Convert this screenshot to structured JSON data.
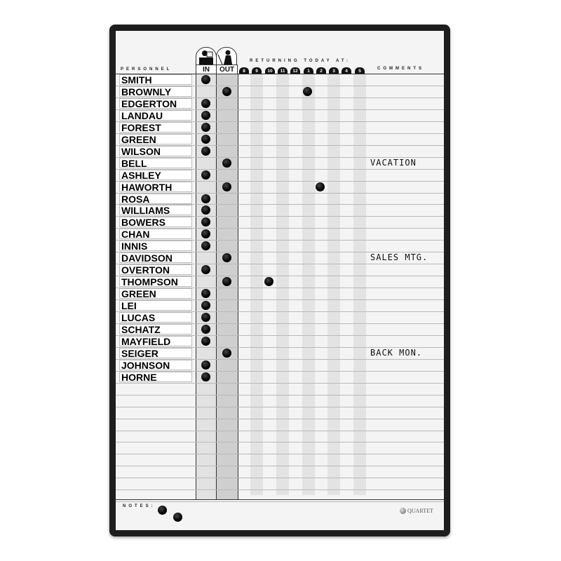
{
  "header": {
    "personnel_label": "PERSONNEL",
    "in_label": "IN",
    "out_label": "OUT",
    "returning_label": "RETURNING TODAY AT:",
    "comments_label": "COMMENTS",
    "times": [
      "8",
      "9",
      "10",
      "11",
      "12",
      "1",
      "2",
      "3",
      "4",
      "5"
    ],
    "in_icon": "person-at-desk-icon",
    "out_icon": "person-walking-out-icon"
  },
  "rows": [
    {
      "name": "SMITH",
      "status": "in",
      "returning": null,
      "comment": ""
    },
    {
      "name": "BROWNLY",
      "status": "out",
      "returning": "1",
      "comment": ""
    },
    {
      "name": "EDGERTON",
      "status": "in",
      "returning": null,
      "comment": ""
    },
    {
      "name": "LANDAU",
      "status": "in",
      "returning": null,
      "comment": ""
    },
    {
      "name": "FOREST",
      "status": "in",
      "returning": null,
      "comment": ""
    },
    {
      "name": "GREEN",
      "status": "in",
      "returning": null,
      "comment": ""
    },
    {
      "name": "WILSON",
      "status": "in",
      "returning": null,
      "comment": ""
    },
    {
      "name": "BELL",
      "status": "out",
      "returning": null,
      "comment": "VACATION"
    },
    {
      "name": "ASHLEY",
      "status": "in",
      "returning": null,
      "comment": ""
    },
    {
      "name": "HAWORTH",
      "status": "out",
      "returning": "2",
      "comment": ""
    },
    {
      "name": "ROSA",
      "status": "in",
      "returning": null,
      "comment": ""
    },
    {
      "name": "WILLIAMS",
      "status": "in",
      "returning": null,
      "comment": ""
    },
    {
      "name": "BOWERS",
      "status": "in",
      "returning": null,
      "comment": ""
    },
    {
      "name": "CHAN",
      "status": "in",
      "returning": null,
      "comment": ""
    },
    {
      "name": "INNIS",
      "status": "in",
      "returning": null,
      "comment": ""
    },
    {
      "name": "DAVIDSON",
      "status": "out",
      "returning": null,
      "comment": "SALES MTG."
    },
    {
      "name": "OVERTON",
      "status": "in",
      "returning": null,
      "comment": ""
    },
    {
      "name": "THOMPSON",
      "status": "out",
      "returning": "10",
      "comment": ""
    },
    {
      "name": "GREEN",
      "status": "in",
      "returning": null,
      "comment": ""
    },
    {
      "name": "LEI",
      "status": "in",
      "returning": null,
      "comment": ""
    },
    {
      "name": "LUCAS",
      "status": "in",
      "returning": null,
      "comment": ""
    },
    {
      "name": "SCHATZ",
      "status": "in",
      "returning": null,
      "comment": ""
    },
    {
      "name": "MAYFIELD",
      "status": "in",
      "returning": null,
      "comment": ""
    },
    {
      "name": "SEIGER",
      "status": "out",
      "returning": null,
      "comment": "BACK MON."
    },
    {
      "name": "JOHNSON",
      "status": "in",
      "returning": null,
      "comment": ""
    },
    {
      "name": "HORNE",
      "status": "in",
      "returning": null,
      "comment": ""
    }
  ],
  "notes": {
    "label": "NOTES:",
    "magnets": 2
  },
  "brand": {
    "logo_text": "QUARTET"
  },
  "colors": {
    "frame": "#1e1e1e",
    "board": "#f4f4f4",
    "in_column": "#e2e2e2",
    "out_column": "#cfcfcf",
    "magnet": "#000000"
  }
}
